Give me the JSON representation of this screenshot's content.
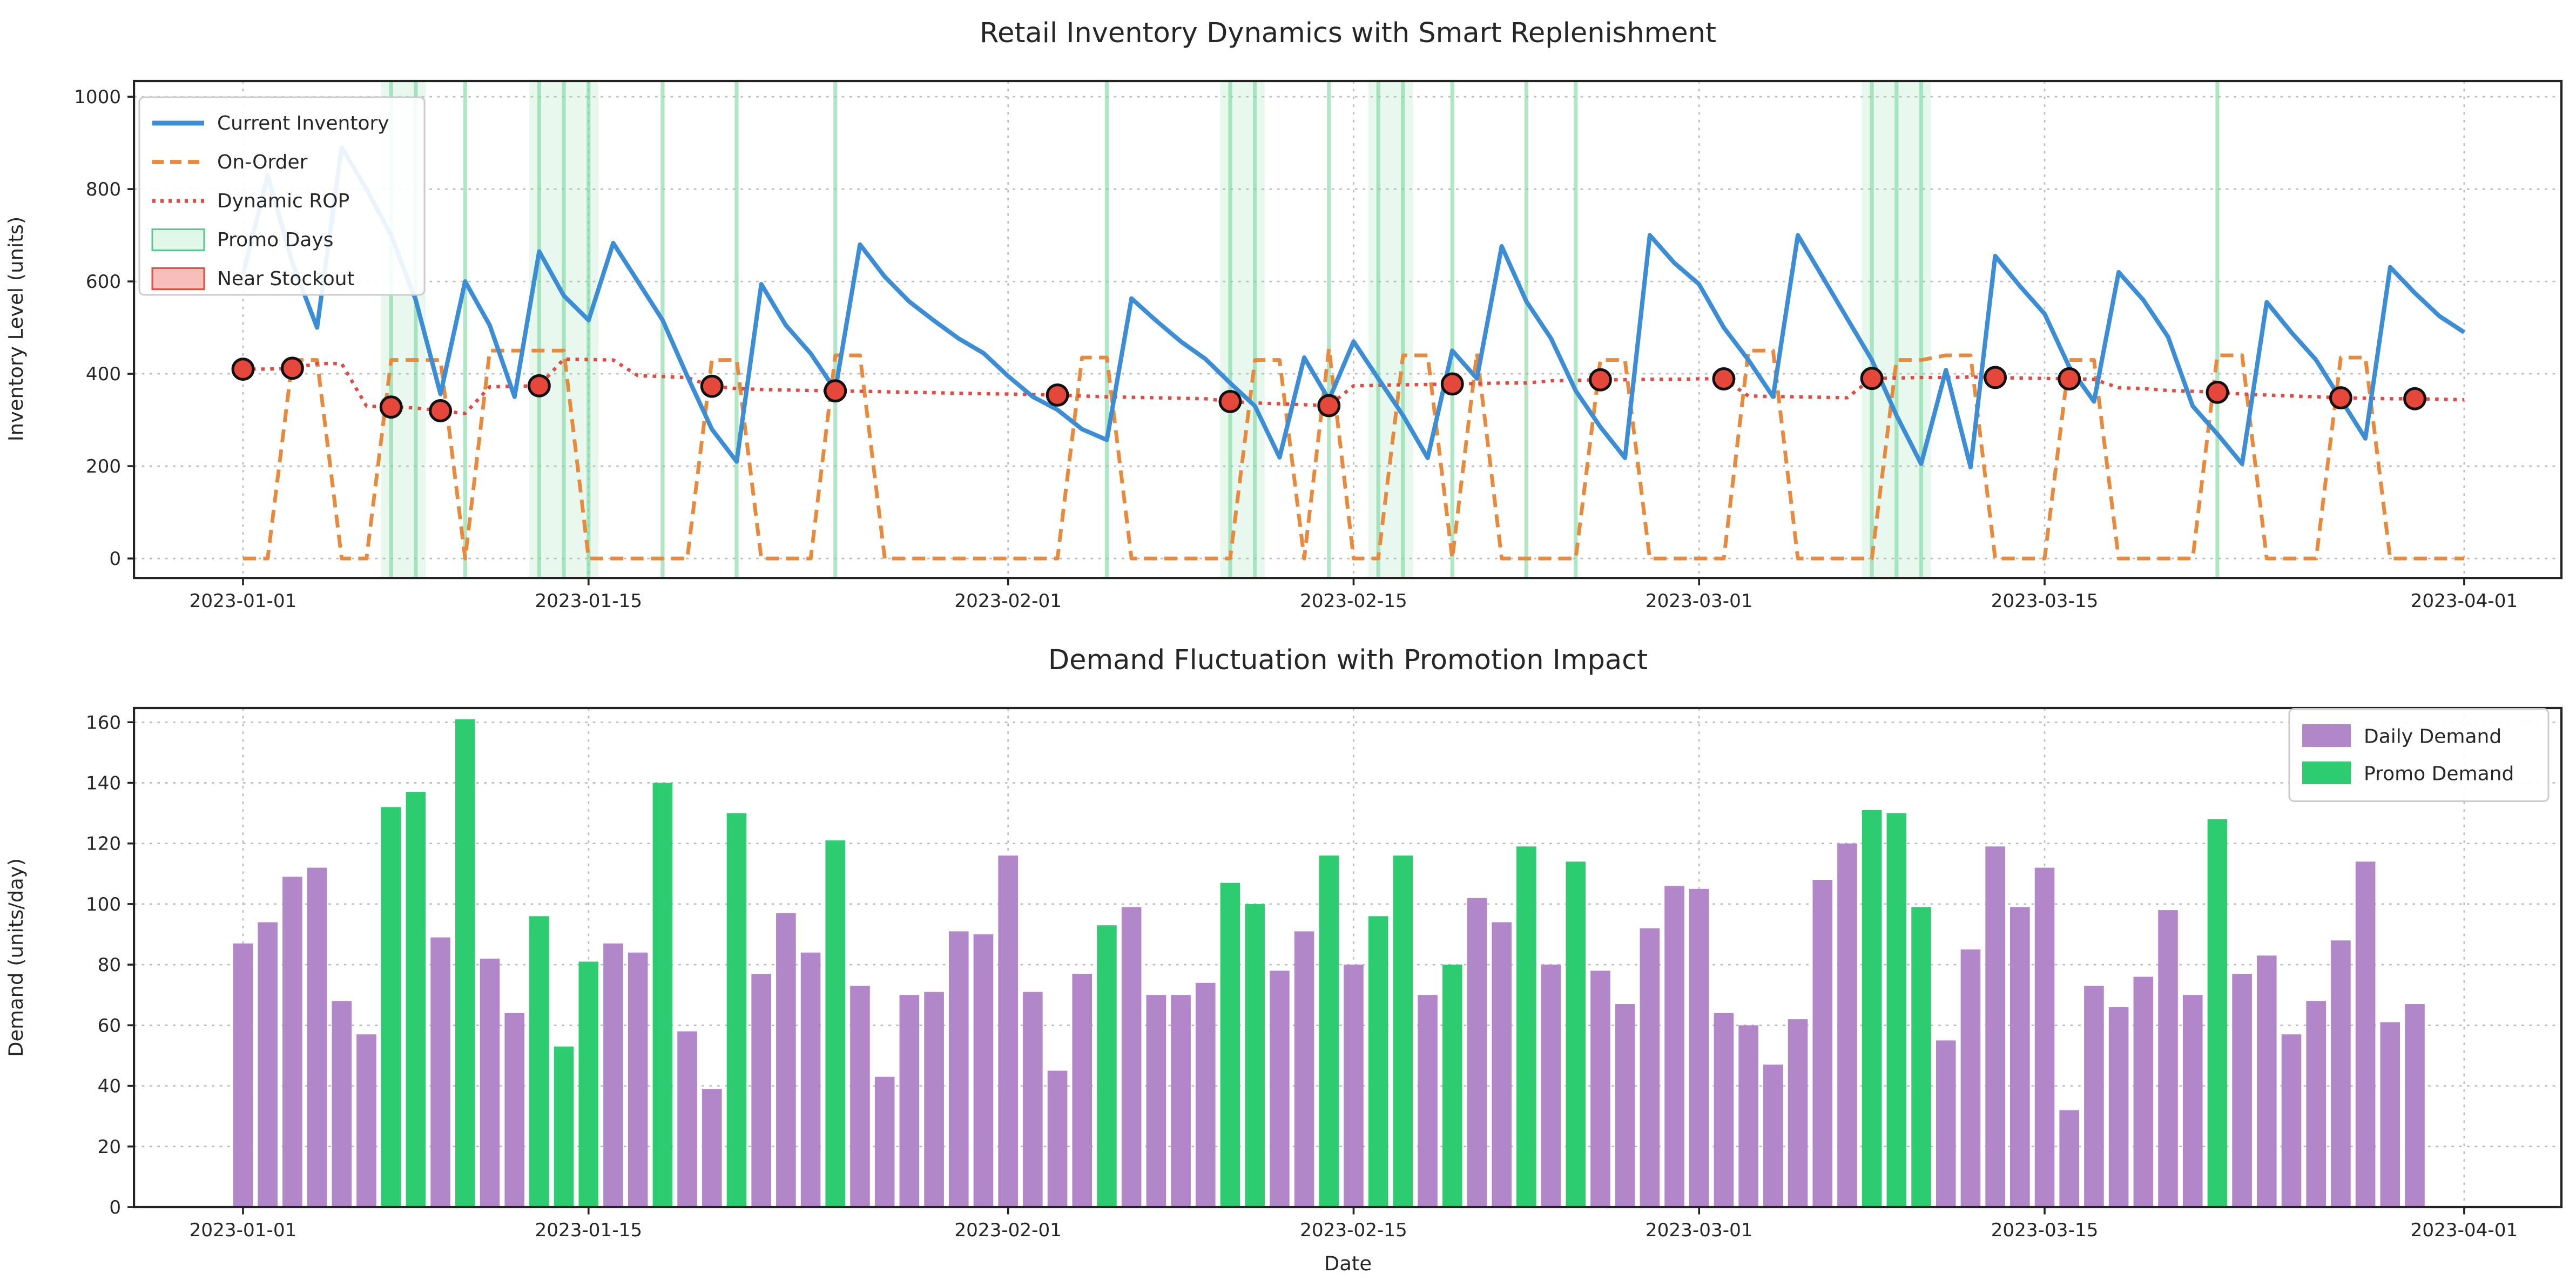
{
  "figure": {
    "background": "#ffffff",
    "top_title": "Retail Inventory Dynamics with Smart Replenishment",
    "bottom_title": "Demand Fluctuation with Promotion Impact",
    "top_ylabel": "Inventory Level (units)",
    "bottom_ylabel": "Demand (units/day)",
    "bottom_xlabel": "Date"
  },
  "colors": {
    "inventory": "#3b8ed5",
    "on_order": "#e9893b",
    "rop": "#e14b41",
    "marker_fill": "#e5483b",
    "marker_edge": "#111111",
    "promo_line": "#7ed9a1",
    "promo_fill": "rgba(126,217,161,0.18)",
    "promo_swatch_fill": "rgba(46,204,113,0.15)",
    "promo_swatch_edge": "#55c98a",
    "stockout_fill": "rgba(240,110,100,0.45)",
    "stockout_edge": "#e74c3c",
    "daily_bar": "#b287c9",
    "promo_bar": "#2ecc71",
    "grid": "#bcbcbc",
    "spine": "#222222"
  },
  "chart_data": [
    {
      "type": "line",
      "title": "Retail Inventory Dynamics with Smart Replenishment",
      "ylabel": "Inventory Level (units)",
      "ylim": [
        -40,
        1035
      ],
      "yticks": [
        0,
        200,
        400,
        600,
        800,
        1000
      ],
      "date_ticks": [
        {
          "day": 0,
          "label": "2023-01-01"
        },
        {
          "day": 14,
          "label": "2023-01-15"
        },
        {
          "day": 31,
          "label": "2023-02-01"
        },
        {
          "day": 45,
          "label": "2023-02-15"
        },
        {
          "day": 59,
          "label": "2023-03-01"
        },
        {
          "day": 73,
          "label": "2023-03-15"
        },
        {
          "day": 90,
          "label": "2023-04-01"
        }
      ],
      "legend": [
        {
          "label": "Current Inventory",
          "kind": "line-solid",
          "color": "#3b8ed5"
        },
        {
          "label": "On-Order",
          "kind": "line-dashed",
          "color": "#e9893b"
        },
        {
          "label": "Dynamic ROP",
          "kind": "line-dotted",
          "color": "#e14b41"
        },
        {
          "label": "Promo Days",
          "kind": "patch-green",
          "color": "#2ecc71"
        },
        {
          "label": "Near Stockout",
          "kind": "patch-red",
          "color": "#e74c3c"
        }
      ],
      "series": [
        {
          "name": "Current Inventory",
          "values": [
            615,
            830,
            640,
            500,
            890,
            800,
            700,
            560,
            356,
            600,
            505,
            350,
            665,
            569,
            516,
            683,
            600,
            516,
            395,
            280,
            210,
            594,
            505,
            444,
            365,
            680,
            610,
            556,
            515,
            476,
            445,
            395,
            350,
            322,
            280,
            257,
            563,
            515,
            470,
            432,
            380,
            330,
            219,
            435,
            344,
            470,
            390,
            310,
            218,
            450,
            390,
            676,
            557,
            477,
            363,
            285,
            218,
            700,
            640,
            594,
            500,
            430,
            350,
            700,
            610,
            520,
            430,
            310,
            205,
            408,
            198,
            655,
            590,
            530,
            415,
            340,
            620,
            560,
            480,
            330,
            270,
            205,
            555,
            490,
            430,
            345,
            260,
            631,
            575,
            525,
            490
          ]
        },
        {
          "name": "On-Order",
          "values": [
            0,
            0,
            430,
            430,
            0,
            0,
            430,
            430,
            430,
            0,
            450,
            450,
            450,
            450,
            0,
            0,
            0,
            0,
            0,
            430,
            430,
            0,
            0,
            0,
            440,
            440,
            0,
            0,
            0,
            0,
            0,
            0,
            0,
            0,
            435,
            435,
            0,
            0,
            0,
            0,
            0,
            430,
            430,
            0,
            455,
            0,
            0,
            440,
            440,
            0,
            445,
            0,
            0,
            0,
            0,
            430,
            430,
            0,
            0,
            0,
            0,
            450,
            450,
            0,
            0,
            0,
            0,
            430,
            430,
            440,
            440,
            0,
            0,
            0,
            430,
            430,
            0,
            0,
            0,
            0,
            440,
            440,
            0,
            0,
            0,
            435,
            435,
            0,
            0,
            0,
            0
          ]
        },
        {
          "name": "Dynamic ROP",
          "values": [
            410,
            410,
            412,
            422,
            422,
            330,
            328,
            326,
            320,
            314,
            372,
            373,
            374,
            432,
            431,
            430,
            396,
            394,
            392,
            373,
            368,
            366,
            365,
            364,
            363,
            362,
            361,
            360,
            359,
            358,
            357,
            356,
            355,
            354,
            352,
            350,
            349,
            348,
            347,
            346,
            340,
            337,
            335,
            333,
            331,
            374,
            375,
            376,
            377,
            378,
            379,
            380,
            380,
            385,
            386,
            387,
            387,
            388,
            388,
            389,
            389,
            352,
            351,
            350,
            349,
            348,
            390,
            391,
            392,
            392,
            393,
            392,
            391,
            390,
            389,
            388,
            370,
            368,
            364,
            362,
            360,
            356,
            354,
            352,
            350,
            348,
            347,
            346,
            346,
            345,
            344
          ]
        }
      ],
      "order_marker_days": [
        0,
        2,
        6,
        8,
        12,
        19,
        24,
        33,
        40,
        44,
        49,
        55,
        60,
        66,
        71,
        74,
        80,
        85,
        88
      ],
      "promo_days": [
        6,
        7,
        9,
        12,
        13,
        14,
        17,
        20,
        24,
        35,
        40,
        41,
        44,
        46,
        47,
        49,
        52,
        54,
        66,
        67,
        68,
        80
      ]
    },
    {
      "type": "bar",
      "title": "Demand Fluctuation with Promotion Impact",
      "xlabel": "Date",
      "ylabel": "Demand (units/day)",
      "ylim": [
        0,
        168
      ],
      "yticks": [
        0,
        20,
        40,
        60,
        80,
        100,
        120,
        140,
        160
      ],
      "date_ticks": [
        {
          "day": 0,
          "label": "2023-01-01"
        },
        {
          "day": 14,
          "label": "2023-01-15"
        },
        {
          "day": 31,
          "label": "2023-02-01"
        },
        {
          "day": 45,
          "label": "2023-02-15"
        },
        {
          "day": 59,
          "label": "2023-03-01"
        },
        {
          "day": 73,
          "label": "2023-03-15"
        },
        {
          "day": 90,
          "label": "2023-04-01"
        }
      ],
      "legend": [
        {
          "label": "Daily Demand",
          "kind": "patch",
          "color": "#b287c9"
        },
        {
          "label": "Promo Demand",
          "kind": "patch",
          "color": "#2ecc71"
        }
      ],
      "values": [
        87,
        94,
        109,
        112,
        68,
        57,
        132,
        137,
        89,
        161,
        82,
        64,
        96,
        53,
        81,
        87,
        84,
        140,
        58,
        39,
        130,
        77,
        97,
        84,
        121,
        73,
        43,
        70,
        71,
        91,
        90,
        116,
        71,
        45,
        77,
        93,
        99,
        70,
        70,
        74,
        107,
        100,
        78,
        91,
        116,
        80,
        96,
        116,
        70,
        80,
        102,
        94,
        119,
        80,
        114,
        78,
        67,
        92,
        106,
        105,
        64,
        60,
        47,
        62,
        108,
        120,
        131,
        130,
        99,
        55,
        85,
        119,
        99,
        112,
        32,
        73,
        66,
        76,
        98,
        70,
        128,
        77,
        83,
        57,
        68,
        88,
        114,
        61,
        67
      ],
      "promo_days": [
        6,
        7,
        9,
        12,
        13,
        14,
        17,
        20,
        24,
        35,
        40,
        41,
        44,
        46,
        47,
        49,
        52,
        54,
        66,
        67,
        68,
        80
      ]
    }
  ]
}
